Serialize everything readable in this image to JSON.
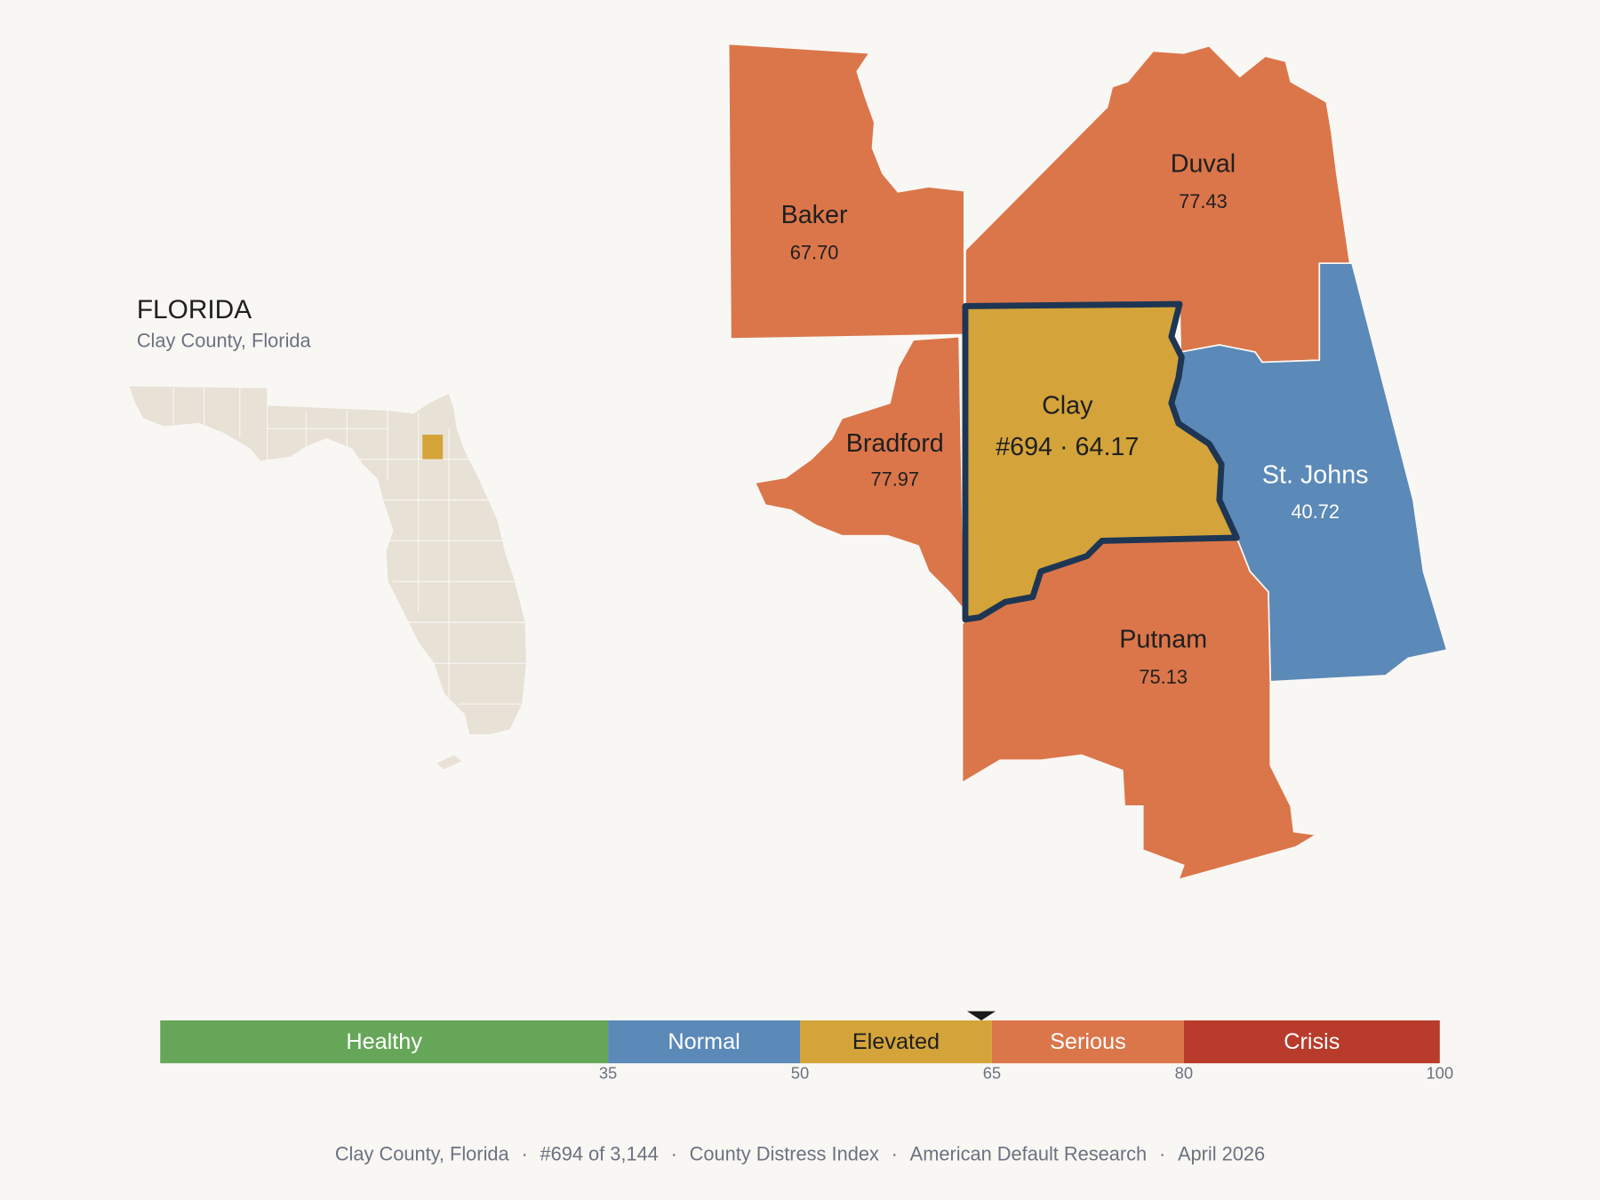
{
  "header": {
    "title": "FLORIDA",
    "subtitle": "Clay County, Florida"
  },
  "separator": "·",
  "focus": {
    "name": "Clay",
    "rank": "#694",
    "score": 64.17
  },
  "counties": [
    {
      "name": "Baker",
      "score": 67.7,
      "score_label": "67.70"
    },
    {
      "name": "Duval",
      "score": 77.43
    },
    {
      "name": "Bradford",
      "score": 77.97
    },
    {
      "name": "St. Johns",
      "score": 40.72
    },
    {
      "name": "Putnam",
      "score": 75.13
    }
  ],
  "scale": {
    "range": [
      0,
      100
    ],
    "ticks": [
      35,
      50,
      65,
      80,
      100
    ],
    "bands": [
      {
        "label": "Healthy",
        "color": "#66a659"
      },
      {
        "label": "Normal",
        "color": "#5b89b8"
      },
      {
        "label": "Elevated",
        "color": "#d4a43a"
      },
      {
        "label": "Serious",
        "color": "#db764a"
      },
      {
        "label": "Crisis",
        "color": "#b83b2b"
      }
    ]
  },
  "footer": [
    "Clay County, Florida",
    "#694 of 3,144",
    "County Distress Index",
    "American Default Research",
    "April 2026"
  ]
}
